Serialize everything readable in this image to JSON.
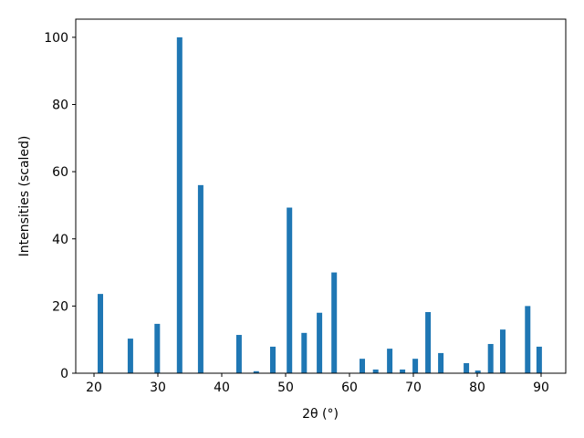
{
  "chart_data": {
    "type": "bar",
    "x_label": "2θ (°)",
    "y_label": "Intensities (scaled)",
    "x": [
      21.0,
      25.7,
      29.9,
      33.4,
      36.7,
      42.7,
      45.4,
      48.0,
      50.6,
      52.9,
      55.3,
      57.6,
      62.0,
      64.1,
      66.3,
      68.3,
      70.3,
      72.3,
      74.3,
      78.3,
      80.1,
      82.1,
      84.0,
      87.9,
      89.7
    ],
    "values": [
      23.6,
      10.3,
      14.7,
      100,
      56,
      11.4,
      0.6,
      7.9,
      49.3,
      12,
      18,
      30,
      4.3,
      1.1,
      7.3,
      1.1,
      4.3,
      18.2,
      6,
      3,
      0.8,
      8.7,
      13,
      20,
      7.9
    ],
    "color": "#1f77b4",
    "xlim": [
      17.14,
      93.86
    ],
    "xticks": [
      20,
      30,
      40,
      50,
      60,
      70,
      80,
      90
    ],
    "ylim": [
      0,
      105.4
    ],
    "yticks": [
      0,
      20,
      40,
      60,
      80,
      100
    ]
  }
}
